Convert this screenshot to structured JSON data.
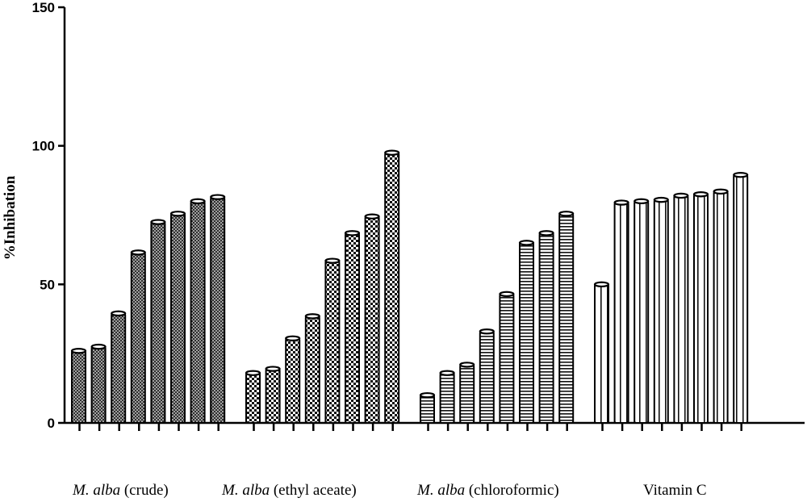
{
  "chart_data": {
    "type": "bar",
    "title": "",
    "xlabel": "",
    "ylabel": "%Inhibation",
    "ylim": [
      0,
      150
    ],
    "yticks": [
      0,
      50,
      100,
      150
    ],
    "grid": false,
    "groups": [
      {
        "label_italic": "M. alba",
        "label_rest": " (crude)",
        "pattern": "crosshatch",
        "values": [
          26,
          27.5,
          39.5,
          61.5,
          72.5,
          75.5,
          80,
          81.5
        ]
      },
      {
        "label_italic": "M. alba",
        "label_rest": " (ethyl aceate)",
        "pattern": "checker",
        "values": [
          18,
          19.5,
          30.5,
          38.5,
          58.5,
          68.5,
          74.5,
          97.5
        ]
      },
      {
        "label_italic": "M. alba",
        "label_rest": " (chloroformic)",
        "pattern": "horizontal-stripes",
        "values": [
          10,
          18,
          21,
          33,
          46.5,
          65,
          68.5,
          75.5
        ]
      },
      {
        "label_italic": "",
        "label_rest": "Vitamin C",
        "pattern": "vertical-stripes",
        "values": [
          50,
          79.5,
          80,
          80.5,
          82,
          82.5,
          83.5,
          89.5
        ]
      }
    ]
  }
}
